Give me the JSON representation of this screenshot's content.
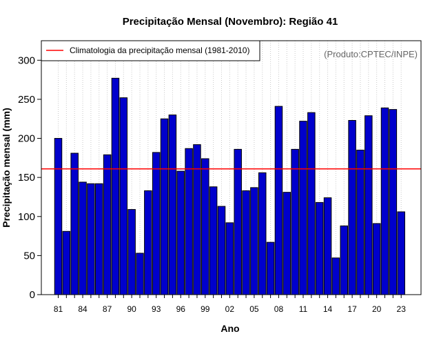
{
  "chart_data": {
    "type": "bar",
    "title": "Precipitação Mensal (Novembro): Região 41",
    "xlabel": "Ano",
    "ylabel": "Precipitação mensal (mm)",
    "ylim": [
      0,
      325
    ],
    "yticks": [
      0,
      50,
      100,
      150,
      200,
      250,
      300
    ],
    "x_tick_labels": [
      "81",
      "84",
      "87",
      "90",
      "93",
      "96",
      "99",
      "02",
      "05",
      "08",
      "11",
      "14",
      "17",
      "20",
      "23"
    ],
    "categories": [
      "1981",
      "1982",
      "1983",
      "1984",
      "1985",
      "1986",
      "1987",
      "1988",
      "1989",
      "1990",
      "1991",
      "1992",
      "1993",
      "1994",
      "1995",
      "1996",
      "1997",
      "1998",
      "1999",
      "2000",
      "2001",
      "2002",
      "2003",
      "2004",
      "2005",
      "2006",
      "2007",
      "2008",
      "2009",
      "2010",
      "2011",
      "2012",
      "2013",
      "2014",
      "2015",
      "2016",
      "2017",
      "2018",
      "2019",
      "2020",
      "2021",
      "2022",
      "2023"
    ],
    "values": [
      200,
      81,
      181,
      144,
      142,
      142,
      179,
      277,
      252,
      109,
      53,
      133,
      182,
      225,
      230,
      158,
      187,
      192,
      174,
      138,
      113,
      92,
      186,
      133,
      137,
      156,
      67,
      241,
      131,
      186,
      222,
      233,
      118,
      124,
      47,
      88,
      223,
      185,
      229,
      91,
      239,
      237,
      106
    ],
    "bar_color": "#0000cc",
    "reference_line": {
      "label": "Climatologia da precipitação mensal (1981-2010)",
      "value": 161,
      "color": "#ff0000"
    },
    "legend_position": "top-left",
    "annotation": "(Produto:CPTEC/INPE)",
    "grid": "vertical dotted"
  }
}
